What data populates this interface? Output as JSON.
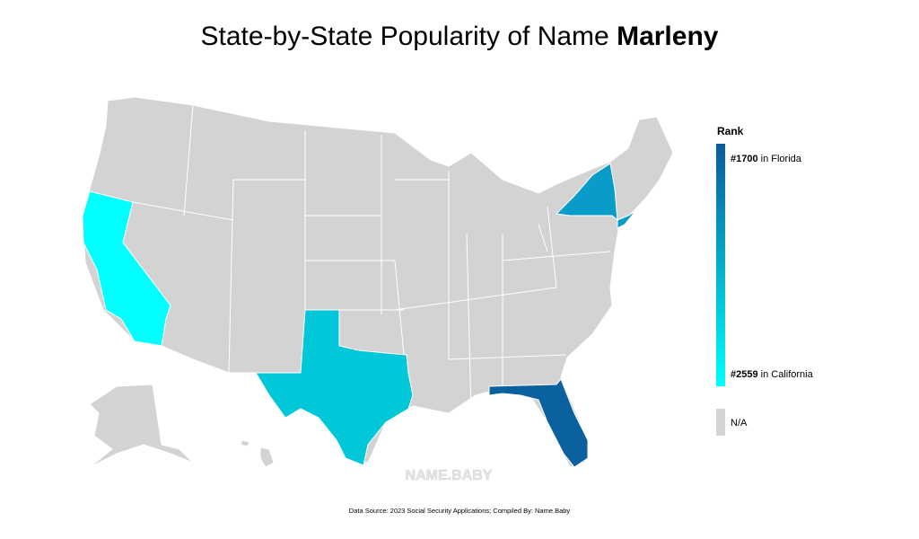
{
  "header": {
    "title": "State-by-State Popularity of Name ",
    "title_name": "Marleny"
  },
  "map": {
    "base_color": "#d3d3d3",
    "highlight_colors": [
      "#00ffff",
      "#00c8d8",
      "#0a9cc8",
      "#0a9cc8",
      "#0a619e"
    ]
  },
  "legend": {
    "title": "Rank",
    "gradient": [
      "#0a5a9a",
      "#00ffff"
    ],
    "top": {
      "rank": "#1700",
      "place": "in Florida"
    },
    "bottom": {
      "rank": "#2559",
      "place": "in California"
    },
    "na_label": "N/A"
  },
  "watermark": "NAME.BABY",
  "footer": {
    "source": "Data Source: 2023 Social Security Applications; Compiled By: Name.Baby"
  }
}
